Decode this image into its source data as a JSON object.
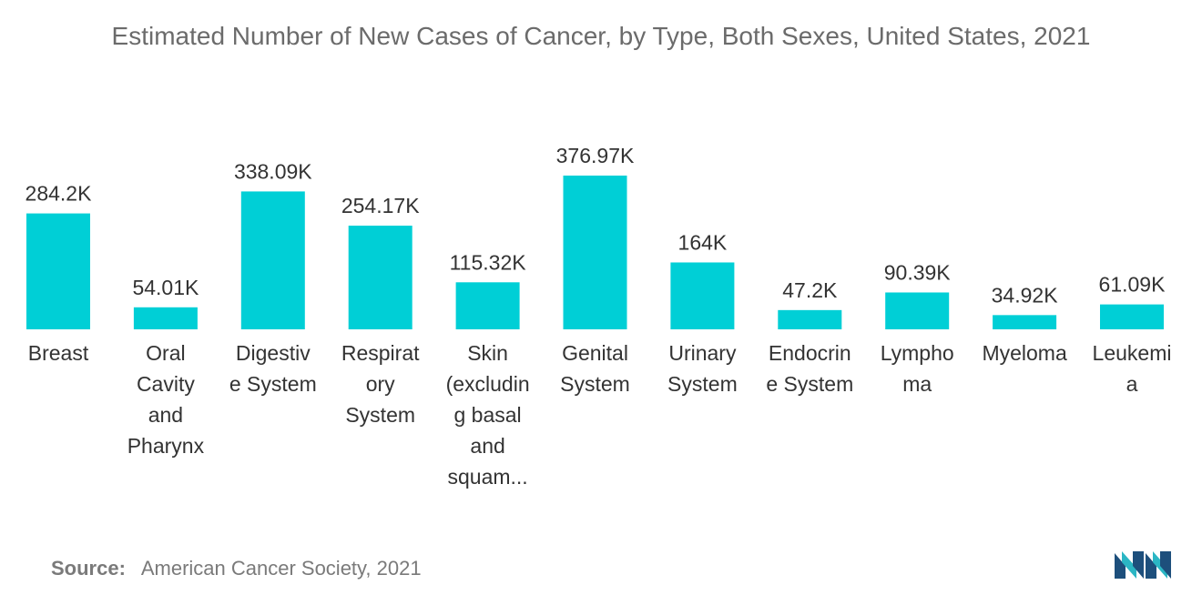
{
  "chart_data": {
    "type": "bar",
    "title": "Estimated Number of New Cases of Cancer, by Type, Both Sexes, United States, 2021",
    "xlabel": "",
    "ylabel": "",
    "categories": [
      [
        "Breast"
      ],
      [
        "Oral",
        "Cavity",
        "and",
        "Pharynx"
      ],
      [
        "Digestiv",
        "e System"
      ],
      [
        "Respirat",
        "ory",
        "System"
      ],
      [
        "Skin",
        "(excludin",
        "g basal",
        "and",
        "squam..."
      ],
      [
        "Genital",
        "System"
      ],
      [
        "Urinary",
        "System"
      ],
      [
        "Endocrin",
        "e System"
      ],
      [
        "Lympho",
        "ma"
      ],
      [
        "Myeloma"
      ],
      [
        "Leukemi",
        "a"
      ]
    ],
    "values": [
      284.2,
      54.01,
      338.09,
      254.17,
      115.32,
      376.97,
      164,
      47.2,
      90.39,
      34.92,
      61.09
    ],
    "value_labels": [
      "284.2K",
      "54.01K",
      "338.09K",
      "254.17K",
      "115.32K",
      "376.97K",
      "164K",
      "47.2K",
      "90.39K",
      "34.92K",
      "61.09K"
    ],
    "ylim": [
      0,
      376.97
    ],
    "grid": false,
    "bar_color": "#00cfd6",
    "label_color": "#333333"
  },
  "source": {
    "label": "Source:",
    "text": "American Cancer Society, 2021"
  },
  "logo": {
    "icon": "mordor-intelligence-logo-icon",
    "colors": [
      "#1d4f7c",
      "#2bb6c4"
    ]
  }
}
